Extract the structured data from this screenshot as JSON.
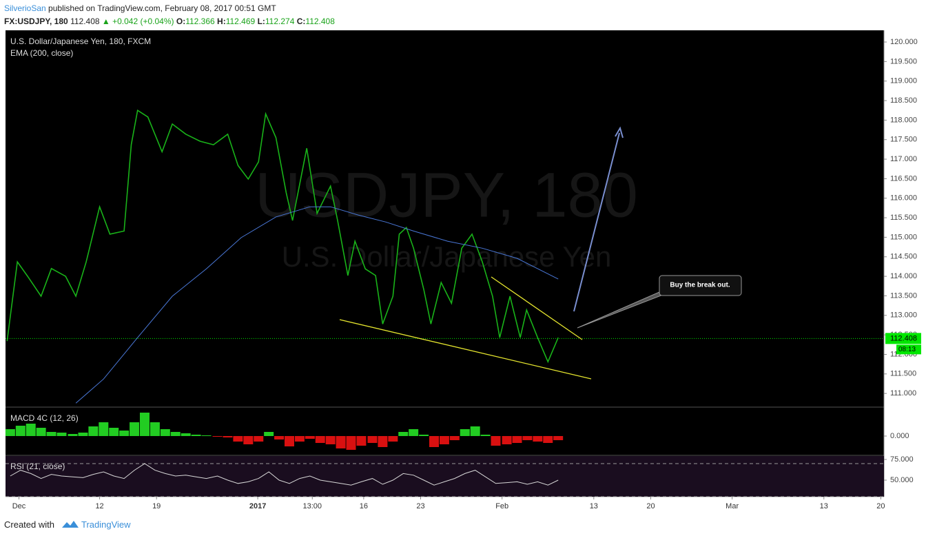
{
  "header": {
    "author": "SilverioSan",
    "published": "published on TradingView.com, February 08, 2017 00:51 GMT",
    "symbol": "FX:USDJPY, 180",
    "last": "112.408",
    "change": "▲ +0.042 (+0.04%)",
    "open_label": "O:",
    "open": "112.366",
    "high_label": "H:",
    "high": "112.469",
    "low_label": "L:",
    "low": "112.274",
    "close_label": "C:",
    "close": "112.408"
  },
  "footer": {
    "created": "Created with",
    "brand": "TradingView"
  },
  "chart_data": [
    {
      "type": "line",
      "title": "U.S. Dollar/Japanese Yen, 180, FXCM",
      "watermark": "USDJPY, 180",
      "watermark_sub": "U.S. Dollar/Japanese Yen",
      "annotation": "Buy the break out.",
      "xlim": [
        -1.7,
        109.4
      ],
      "ylim": [
        110.65,
        120.3
      ],
      "yticks": [
        {
          "value": 111,
          "label": "111.000"
        },
        {
          "value": 111.5,
          "label": "111.500"
        },
        {
          "value": 112,
          "label": "112.000"
        },
        {
          "value": 112.5,
          "label": "112.500"
        },
        {
          "value": 113,
          "label": "113.000"
        },
        {
          "value": 113.5,
          "label": "113.500"
        },
        {
          "value": 114,
          "label": "114.000"
        },
        {
          "value": 114.5,
          "label": "114.500"
        },
        {
          "value": 115,
          "label": "115.000"
        },
        {
          "value": 115.5,
          "label": "115.500"
        },
        {
          "value": 116,
          "label": "116.000"
        },
        {
          "value": 116.5,
          "label": "116.500"
        },
        {
          "value": 117,
          "label": "117.000"
        },
        {
          "value": 117.5,
          "label": "117.500"
        },
        {
          "value": 118,
          "label": "118.000"
        },
        {
          "value": 118.5,
          "label": "118.500"
        },
        {
          "value": 119,
          "label": "119.000"
        },
        {
          "value": 119.5,
          "label": "119.500"
        },
        {
          "value": 120,
          "label": "120.000"
        }
      ],
      "last_price": 112.408,
      "countdown": "08:13",
      "last_color": "#00e600",
      "series": [
        {
          "name": "U.S. Dollar/Japanese Yen, 180, FXCM",
          "color": "#19b319",
          "x": [
            -1.5,
            -0.2,
            1.1,
            2.8,
            4.1,
            5.9,
            7.2,
            8.5,
            10.2,
            11.5,
            13.3,
            14.2,
            15.0,
            16.3,
            18.1,
            19.4,
            21.1,
            22.9,
            24.6,
            26.4,
            27.7,
            29.0,
            30.3,
            31.2,
            32.5,
            33.8,
            34.6,
            36.4,
            37.7,
            39.4,
            40.3,
            41.6,
            42.5,
            43.8,
            45.1,
            46.0,
            47.3,
            48.1,
            49.0,
            49.9,
            51.2,
            52.1,
            53.4,
            54.7,
            56.0,
            57.3,
            58.6,
            59.9,
            60.8,
            62.1,
            63.4,
            64.2,
            65.6,
            66.9,
            68.2
          ],
          "values": [
            112.34,
            114.37,
            114.0,
            113.49,
            114.2,
            114.0,
            113.49,
            114.37,
            115.78,
            115.08,
            115.16,
            117.37,
            118.25,
            118.08,
            117.19,
            117.9,
            117.64,
            117.46,
            117.37,
            117.64,
            116.84,
            116.49,
            116.93,
            118.16,
            117.55,
            116.14,
            115.43,
            117.28,
            115.61,
            116.31,
            115.43,
            114.02,
            114.9,
            114.19,
            114.02,
            112.78,
            113.49,
            115.08,
            115.25,
            114.72,
            113.66,
            112.78,
            113.84,
            113.31,
            114.72,
            115.08,
            114.37,
            113.49,
            112.43,
            113.49,
            112.43,
            113.14,
            112.43,
            111.81,
            112.43
          ]
        },
        {
          "name": "EMA (200, close)",
          "color": "#4a78d8",
          "x": [
            7.2,
            10.7,
            15.0,
            19.4,
            23.7,
            28.1,
            32.5,
            36.8,
            39.4,
            42.9,
            46.4,
            49.9,
            54.2,
            58.6,
            63.0,
            68.2
          ],
          "values": [
            110.75,
            111.37,
            112.43,
            113.49,
            114.19,
            114.99,
            115.52,
            115.78,
            115.78,
            115.57,
            115.39,
            115.16,
            114.9,
            114.72,
            114.46,
            113.93
          ]
        }
      ]
    },
    {
      "type": "bar",
      "title": "MACD 4C (12, 26)",
      "xlim": [
        -1.7,
        109.4
      ],
      "ylim": [
        -0.28,
        0.42
      ],
      "yticks": [
        {
          "value": 0,
          "label": "0.000"
        }
      ],
      "positive_color": "#22cc22",
      "negative_color": "#d91010",
      "x": [
        -1.1,
        0.2,
        1.5,
        2.8,
        4.1,
        5.4,
        6.8,
        8.1,
        9.4,
        10.7,
        12.0,
        13.3,
        14.6,
        15.9,
        17.2,
        18.5,
        19.8,
        21.1,
        22.4,
        23.7,
        25.1,
        26.4,
        27.7,
        29.0,
        30.3,
        31.6,
        32.9,
        34.2,
        35.5,
        36.8,
        38.1,
        39.4,
        40.7,
        42.0,
        43.3,
        44.7,
        46.0,
        47.3,
        48.6,
        49.9,
        51.2,
        52.5,
        53.8,
        55.1,
        56.4,
        57.7,
        59.0,
        60.3,
        61.7,
        63.0,
        64.3,
        65.6,
        66.9,
        68.2
      ],
      "values": [
        0.1,
        0.15,
        0.18,
        0.12,
        0.06,
        0.05,
        0.03,
        0.05,
        0.14,
        0.2,
        0.12,
        0.08,
        0.2,
        0.34,
        0.2,
        0.1,
        0.06,
        0.04,
        0.02,
        0.01,
        -0.01,
        -0.02,
        -0.08,
        -0.12,
        -0.08,
        0.06,
        -0.05,
        -0.15,
        -0.08,
        -0.04,
        -0.1,
        -0.12,
        -0.18,
        -0.2,
        -0.14,
        -0.1,
        -0.16,
        -0.08,
        0.06,
        0.1,
        0.02,
        -0.16,
        -0.12,
        -0.06,
        0.1,
        0.14,
        0.02,
        -0.14,
        -0.12,
        -0.1,
        -0.06,
        -0.08,
        -0.1,
        -0.06
      ]
    },
    {
      "type": "line",
      "title": "RSI (21, close)",
      "xlim": [
        -1.7,
        109.4
      ],
      "ylim": [
        30,
        80
      ],
      "yticks": [
        {
          "value": 50,
          "label": "50.000"
        },
        {
          "value": 75,
          "label": "75.000"
        }
      ],
      "bands": [
        70,
        30
      ],
      "background": "#1a0d1f",
      "xticks": [
        {
          "value": 0,
          "label": "Dec"
        },
        {
          "value": 10.2,
          "label": "12"
        },
        {
          "value": 17.4,
          "label": "19"
        },
        {
          "value": 30.2,
          "label": "2017"
        },
        {
          "value": 37.1,
          "label": "13:00"
        },
        {
          "value": 43.6,
          "label": "16"
        },
        {
          "value": 50.8,
          "label": "23"
        },
        {
          "value": 61.1,
          "label": "Feb"
        },
        {
          "value": 72.7,
          "label": "13"
        },
        {
          "value": 79.9,
          "label": "20"
        },
        {
          "value": 90.2,
          "label": "Mar"
        },
        {
          "value": 101.8,
          "label": "13"
        },
        {
          "value": 109.0,
          "label": "20"
        }
      ],
      "series": [
        {
          "name": "RSI (21, close)",
          "color": "#d8d8d8",
          "x": [
            -1.1,
            0.2,
            1.5,
            2.8,
            4.1,
            5.4,
            6.8,
            8.1,
            9.4,
            10.7,
            12.0,
            13.3,
            14.6,
            15.9,
            17.2,
            18.5,
            19.8,
            21.1,
            22.4,
            23.7,
            25.1,
            26.4,
            27.7,
            29.0,
            30.3,
            31.6,
            32.9,
            34.2,
            35.5,
            36.8,
            38.1,
            39.4,
            40.7,
            42.0,
            43.3,
            44.7,
            46.0,
            47.3,
            48.6,
            49.9,
            51.2,
            52.5,
            53.8,
            55.1,
            56.4,
            57.7,
            59.0,
            60.3,
            61.7,
            63.0,
            64.3,
            65.6,
            66.9,
            68.2
          ],
          "values": [
            55,
            62,
            58,
            52,
            57,
            55,
            54,
            53,
            57,
            60,
            55,
            52,
            62,
            70,
            62,
            58,
            55,
            56,
            54,
            52,
            55,
            50,
            46,
            48,
            52,
            60,
            50,
            46,
            52,
            55,
            50,
            48,
            46,
            44,
            48,
            52,
            45,
            50,
            58,
            56,
            50,
            44,
            48,
            52,
            58,
            62,
            54,
            46,
            47,
            48,
            45,
            48,
            44,
            50
          ]
        }
      ]
    }
  ]
}
